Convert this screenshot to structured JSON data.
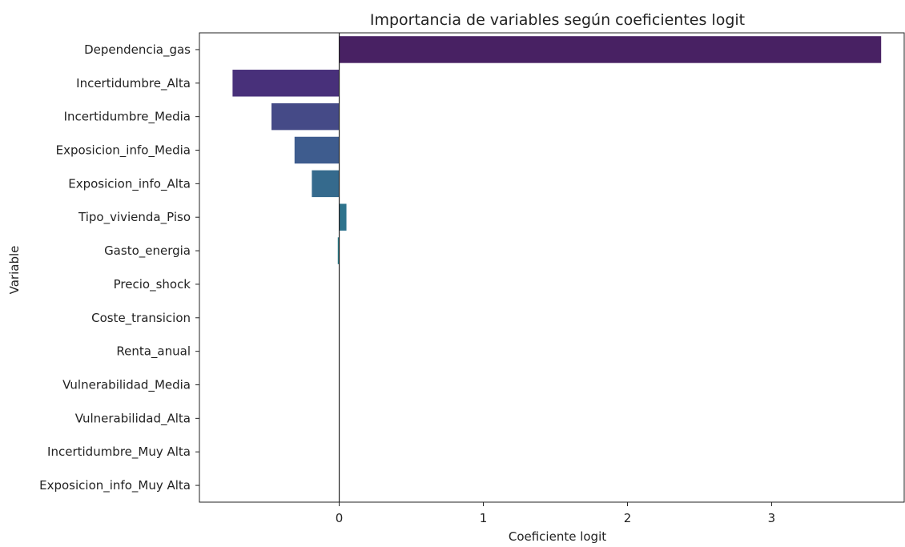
{
  "chart_data": {
    "type": "bar",
    "orientation": "horizontal",
    "title": "Importancia de variables según coeficientes logit",
    "xlabel": "Coeficiente logit",
    "ylabel": "Variable",
    "xlim": [
      -0.97,
      3.92
    ],
    "xticks": [
      0,
      1,
      2,
      3
    ],
    "grid": false,
    "legend": "none",
    "zero_line": true,
    "categories": [
      "Dependencia_gas",
      "Incertidumbre_Alta",
      "Incertidumbre_Media",
      "Exposicion_info_Media",
      "Exposicion_info_Alta",
      "Tipo_vivienda_Piso",
      "Gasto_energia",
      "Precio_shock",
      "Coste_transicion",
      "Renta_anual",
      "Vulnerabilidad_Media",
      "Vulnerabilidad_Alta",
      "Incertidumbre_Muy Alta",
      "Exposicion_info_Muy Alta"
    ],
    "values": [
      3.76,
      -0.74,
      -0.47,
      -0.31,
      -0.19,
      0.05,
      -0.01,
      0,
      0,
      0,
      0,
      0,
      0,
      0
    ],
    "colors": [
      "#482163",
      "#48307a",
      "#454a87",
      "#3e5c8e",
      "#356a8d",
      "#2e738d",
      "#2b7c8a",
      "#27878a",
      "#219488",
      "#22a187",
      "#2fae7d",
      "#47bd70",
      "#6ccd5a",
      "#9bd93f"
    ]
  }
}
